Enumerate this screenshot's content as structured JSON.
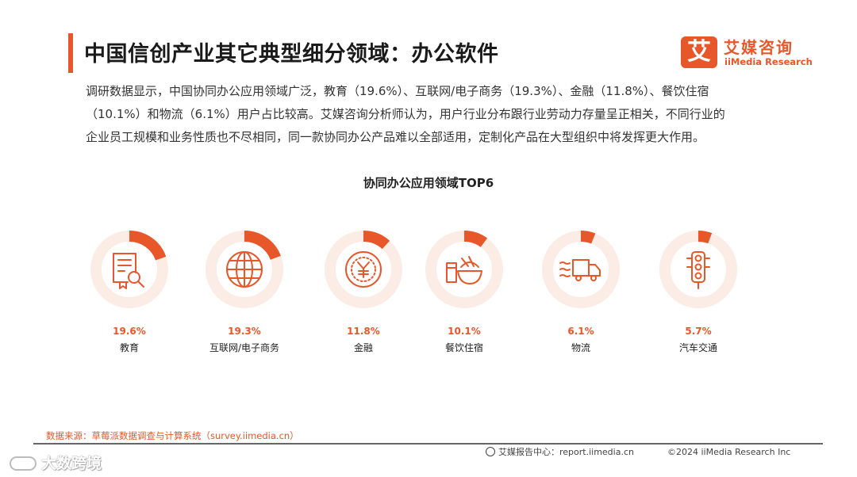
{
  "header": {
    "title": "中国信创产业其它典型细分领域：办公软件",
    "logo_mark": "艾",
    "logo_cn": "艾媒咨询",
    "logo_en": "iiMedia Research"
  },
  "description": [
    "调研数据显示，中国协同办公应用领域广泛，教育（19.6%）、互联网/电子商务（19.3%）、金融（11.8%）、餐饮住宿",
    "（10.1%）和物流（6.1%）用户占比较高。艾媒咨询分析师认为，用户行业分布跟行业劳动力存量呈正相关，不同行业的",
    "企业员工规模和业务性质也不尽相同，同一款协同办公产品难以全部适用，定制化产品在大型组织中将发挥更大作用。"
  ],
  "chart_data": {
    "type": "pie",
    "title": "协同办公应用领域TOP6",
    "categories": [
      "教育",
      "互联网/电子商务",
      "金融",
      "餐饮住宿",
      "物流",
      "汽车交通"
    ],
    "values": [
      19.6,
      19.3,
      11.8,
      10.1,
      6.1,
      5.7
    ],
    "value_labels": [
      "19.6%",
      "19.3%",
      "11.8%",
      "10.1%",
      "6.1%",
      "5.7%"
    ],
    "icons": [
      "certificate-search-icon",
      "globe-icon",
      "yuan-coin-icon",
      "food-bowl-icon",
      "delivery-truck-icon",
      "traffic-light-icon"
    ],
    "unit": "%",
    "colors": {
      "accent": "#e8572a",
      "track": "#fbece6",
      "icon": "#e8572a",
      "value_text": "#e8572a"
    }
  },
  "footer": {
    "source": "数据来源：草莓派数据调查与计算系统（survey.iimedia.cn）",
    "report_center": "艾媒报告中心：report.iimedia.cn",
    "copyright": "©2024  iiMedia Research  Inc"
  },
  "watermark": "大数跨境"
}
